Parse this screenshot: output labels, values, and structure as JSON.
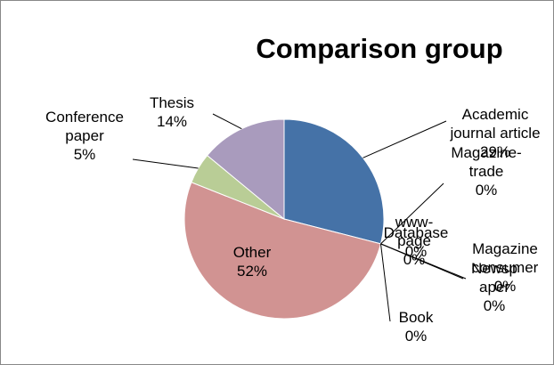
{
  "chart_data": {
    "type": "pie",
    "title": "Comparison group",
    "categories": [
      "Academic journal article",
      "Magazine-trade",
      "www-page",
      "Database",
      "Magazine consumer",
      "Newspaper",
      "Book",
      "Other",
      "Conference paper",
      "Thesis"
    ],
    "values": [
      29,
      0,
      0,
      0,
      0,
      0,
      0,
      52,
      5,
      14
    ],
    "value_labels": [
      "29%",
      "0%",
      "0%",
      "0%",
      "0%",
      "0%",
      "0%",
      "52%",
      "5%",
      "14%"
    ],
    "colors": [
      "#4572a7",
      "#aa4643",
      "#89a54e",
      "#71588f",
      "#4198af",
      "#db843d",
      "#93a9cf",
      "#d19392",
      "#b9cd96",
      "#a99bbd"
    ]
  }
}
